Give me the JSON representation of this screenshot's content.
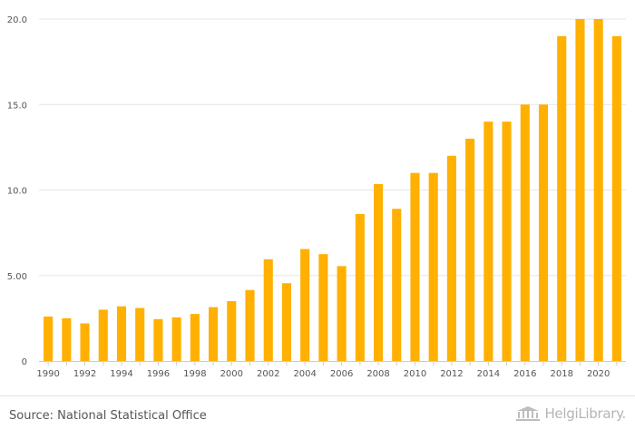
{
  "colors": {
    "bar": "#ffb000",
    "grid": "#e6e6e6",
    "axis": "#cccccc",
    "text": "#555555"
  },
  "chart_data": {
    "type": "bar",
    "title": "",
    "xlabel": "",
    "ylabel": "",
    "categories": [
      "1990",
      "1991",
      "1992",
      "1993",
      "1994",
      "1995",
      "1996",
      "1997",
      "1998",
      "1999",
      "2000",
      "2001",
      "2002",
      "2003",
      "2004",
      "2005",
      "2006",
      "2007",
      "2008",
      "2009",
      "2010",
      "2011",
      "2012",
      "2013",
      "2014",
      "2015",
      "2016",
      "2017",
      "2018",
      "2019",
      "2020",
      "2021"
    ],
    "values": [
      2.6,
      2.5,
      2.2,
      3.0,
      3.2,
      3.1,
      2.45,
      2.55,
      2.75,
      3.15,
      3.5,
      4.15,
      5.95,
      4.55,
      6.55,
      6.25,
      5.55,
      8.6,
      10.35,
      8.9,
      11.0,
      11.0,
      12.0,
      13.0,
      14.0,
      14.0,
      15.0,
      15.0,
      19.0,
      20.0,
      20.0,
      19.0
    ],
    "ylim": [
      0,
      20
    ],
    "yticks": [
      0,
      5,
      10,
      15,
      20
    ],
    "ytick_labels": [
      "0",
      "5.00",
      "10.0",
      "15.0",
      "20.0"
    ],
    "xtick_labels": [
      "1990",
      "1992",
      "1994",
      "1996",
      "1998",
      "2000",
      "2002",
      "2004",
      "2006",
      "2008",
      "2010",
      "2012",
      "2014",
      "2016",
      "2018",
      "2020"
    ],
    "grid": true,
    "legend": "none"
  },
  "footer": {
    "source": "Source: National Statistical Office",
    "brand": "HelgiLibrary."
  }
}
